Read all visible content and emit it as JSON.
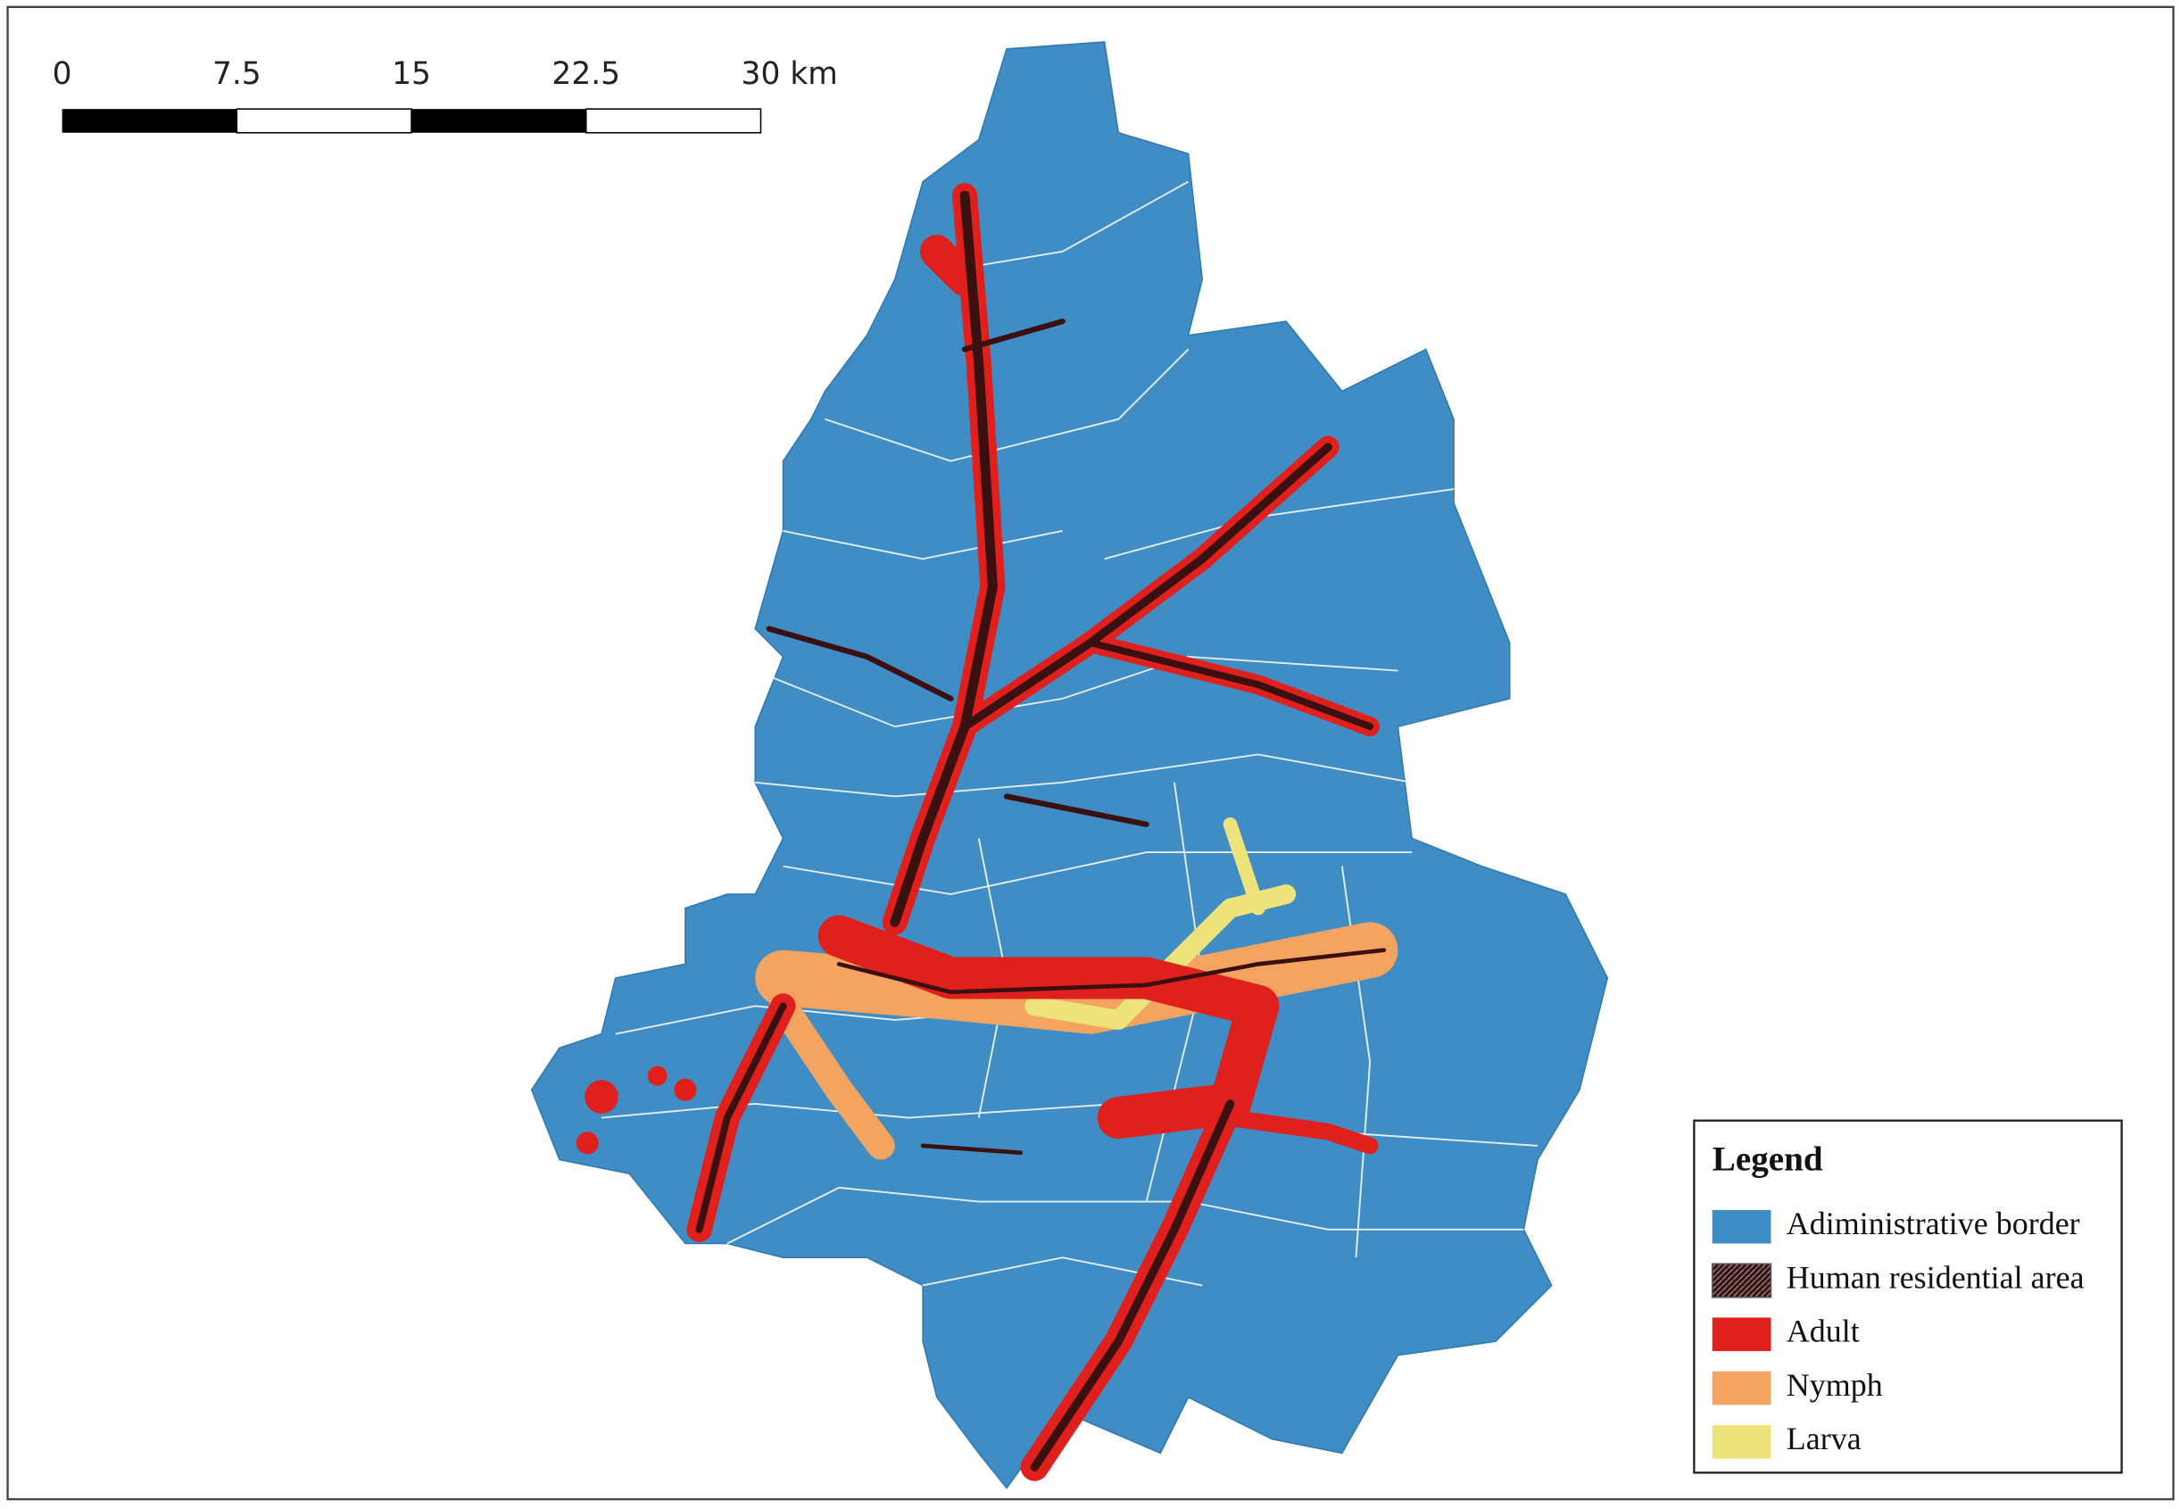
{
  "scale_bar": {
    "labels": [
      "0",
      "7.5",
      "15",
      "22.5",
      "30 km"
    ]
  },
  "legend": {
    "title": "Legend",
    "items": [
      {
        "label": "Adiministrative border",
        "color": "#3f8dc4"
      },
      {
        "label": "Human residential area",
        "color": "#5a5a5a"
      },
      {
        "label": "Adult",
        "color": "#e0201c"
      },
      {
        "label": "Nymph",
        "color": "#f2a460"
      },
      {
        "label": "Larva",
        "color": "#eee27a"
      }
    ]
  }
}
